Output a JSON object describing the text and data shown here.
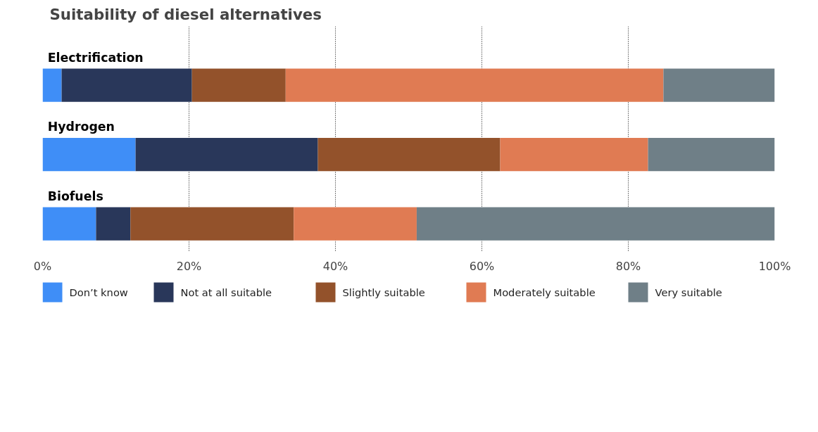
{
  "chart_data": {
    "type": "bar",
    "orientation": "horizontal",
    "stacked": true,
    "title": "Suitability of diesel alternatives",
    "categories": [
      "Electrification",
      "Hydrogen",
      "Biofuels"
    ],
    "series": [
      {
        "name": "Don’t know",
        "color": "#3f8ef7",
        "values": [
          2.6,
          12.7,
          7.3
        ]
      },
      {
        "name": "Not at all suitable",
        "color": "#29375a",
        "values": [
          17.8,
          24.9,
          4.7
        ]
      },
      {
        "name": "Slightly suitable",
        "color": "#93522b",
        "values": [
          12.8,
          24.9,
          22.3
        ]
      },
      {
        "name": "Moderately suitable",
        "color": "#e07b53",
        "values": [
          51.6,
          20.2,
          16.8
        ]
      },
      {
        "name": "Very suitable",
        "color": "#6f7f87",
        "values": [
          15.2,
          17.3,
          48.9
        ]
      }
    ],
    "xlim": [
      0,
      100
    ],
    "xticks": [
      {
        "value": 0,
        "label": "0%"
      },
      {
        "value": 20,
        "label": "20%"
      },
      {
        "value": 40,
        "label": "40%"
      },
      {
        "value": 60,
        "label": "60%"
      },
      {
        "value": 80,
        "label": "80%"
      },
      {
        "value": 100,
        "label": "100%"
      }
    ],
    "grid": "x",
    "legend": "bottom",
    "tick_labels": "x"
  }
}
